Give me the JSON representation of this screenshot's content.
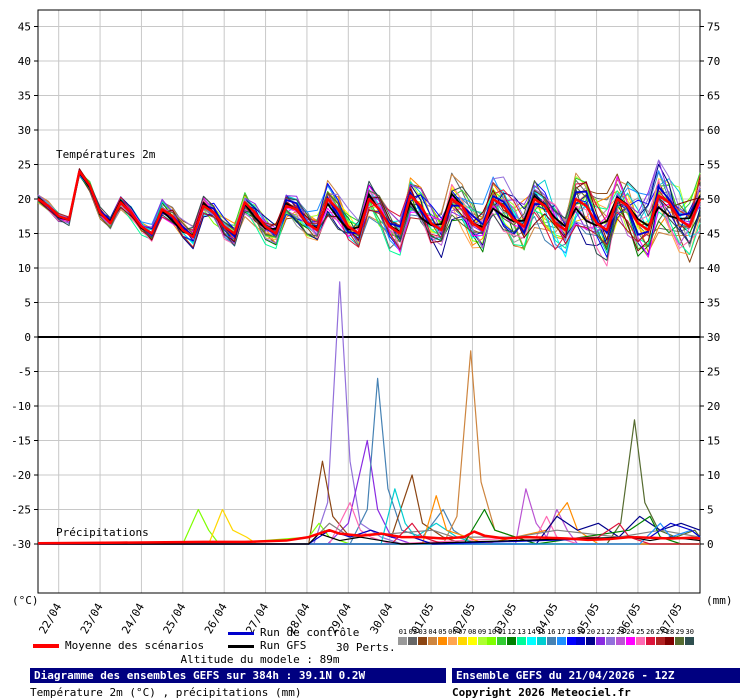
{
  "chart_data": {
    "type": "line",
    "title": "Diagramme des ensembles GEFS sur 384h : 39.1N 0.2W",
    "subtitle": "Température 2m (°C) , précipitations (mm)",
    "run_label": "Ensemble GEFS du 21/04/2026 - 12Z",
    "copyright": "Copyright 2026 Meteociel.fr",
    "altitude_note": "Altitude du modele : 89m",
    "sections": {
      "temperature_label": "Températures 2m",
      "precipitation_label": "Précipitations"
    },
    "x_dates": [
      "22/04",
      "23/04",
      "24/04",
      "25/04",
      "26/04",
      "27/04",
      "28/04",
      "29/04",
      "30/04",
      "01/05",
      "02/05",
      "03/05",
      "04/05",
      "05/05",
      "06/05",
      "07/05"
    ],
    "hours_total": 384,
    "first_day_offset_hours": 12,
    "left_axis": {
      "label": "(°C)",
      "range": [
        -30,
        45
      ],
      "ticks": [
        45,
        40,
        35,
        30,
        25,
        20,
        15,
        10,
        5,
        0,
        -5,
        -10,
        -15,
        -20,
        -25,
        -30
      ]
    },
    "right_axis": {
      "label": "(mm)",
      "range": [
        0,
        75
      ],
      "ticks": [
        75,
        70,
        65,
        60,
        55,
        50,
        45,
        40,
        35,
        30,
        25,
        20,
        15,
        10,
        5,
        0
      ]
    },
    "temperature": {
      "step_hours": 6,
      "mean": [
        20,
        19,
        17.5,
        17,
        24,
        22,
        18,
        16.5,
        19.5,
        18,
        16,
        15,
        18.5,
        17.5,
        15.5,
        14.5,
        19,
        18,
        16,
        15,
        19.5,
        18,
        16,
        15,
        19,
        18.5,
        16.5,
        15.5,
        20,
        18.5,
        16,
        15,
        20,
        18.5,
        16,
        15,
        20.5,
        19,
        16.5,
        15.5,
        20,
        19,
        16.5,
        15.5,
        20,
        19,
        17,
        16,
        20,
        19,
        16.5,
        15.5,
        20,
        19,
        16.5,
        15.5,
        20,
        19,
        16.5,
        15.5,
        20.5,
        19.5,
        17,
        16,
        20
      ],
      "ensemble": {
        "members": 30,
        "spread_start": 0.35,
        "spread_end": 3.2
      }
    },
    "precipitation": {
      "mean": [
        [
          0,
          0.1
        ],
        [
          48,
          0.2
        ],
        [
          96,
          0.3
        ],
        [
          120,
          0.3
        ],
        [
          144,
          0.5
        ],
        [
          157,
          1
        ],
        [
          169,
          2
        ],
        [
          175,
          1.5
        ],
        [
          187,
          1.2
        ],
        [
          199,
          1.5
        ],
        [
          211,
          1
        ],
        [
          223,
          1
        ],
        [
          235,
          0.8
        ],
        [
          247,
          1
        ],
        [
          253,
          1.8
        ],
        [
          259,
          1.2
        ],
        [
          271,
          0.8
        ],
        [
          283,
          1
        ],
        [
          295,
          0.9
        ],
        [
          307,
          0.8
        ],
        [
          319,
          0.6
        ],
        [
          331,
          0.7
        ],
        [
          343,
          1
        ],
        [
          355,
          0.9
        ],
        [
          367,
          0.8
        ],
        [
          379,
          0.9
        ],
        [
          384,
          0.8
        ]
      ],
      "members": [
        {
          "color": "#9370db",
          "points": [
            [
              0,
              0
            ],
            [
              150,
              0
            ],
            [
              160,
              0
            ],
            [
              168,
              6
            ],
            [
              175,
              38
            ],
            [
              181,
              12
            ],
            [
              187,
              3
            ],
            [
              199,
              1
            ],
            [
              211,
              0
            ],
            [
              384,
              0
            ]
          ]
        },
        {
          "color": "#8a2be2",
          "points": [
            [
              0,
              0
            ],
            [
              168,
              0
            ],
            [
              180,
              3
            ],
            [
              191,
              15
            ],
            [
              197,
              5
            ],
            [
              205,
              1
            ],
            [
              217,
              0
            ],
            [
              384,
              0
            ]
          ]
        },
        {
          "color": "#4682b4",
          "points": [
            [
              0,
              0
            ],
            [
              181,
              0
            ],
            [
              191,
              5
            ],
            [
              197,
              24
            ],
            [
              203,
              8
            ],
            [
              211,
              2
            ],
            [
              223,
              1
            ],
            [
              235,
              5
            ],
            [
              241,
              2
            ],
            [
              253,
              0
            ],
            [
              384,
              0
            ]
          ]
        },
        {
          "color": "#cd853f",
          "points": [
            [
              0,
              0
            ],
            [
              235,
              0
            ],
            [
              243,
              4
            ],
            [
              251,
              28
            ],
            [
              257,
              9
            ],
            [
              265,
              2
            ],
            [
              277,
              1
            ],
            [
              289,
              0
            ],
            [
              384,
              0
            ]
          ]
        },
        {
          "color": "#556b2f",
          "points": [
            [
              0,
              0
            ],
            [
              330,
              0
            ],
            [
              338,
              3
            ],
            [
              346,
              18
            ],
            [
              352,
              6
            ],
            [
              360,
              2
            ],
            [
              370,
              1
            ],
            [
              381,
              2
            ],
            [
              384,
              1
            ]
          ]
        },
        {
          "color": "#8b4513",
          "points": [
            [
              0,
              0
            ],
            [
              150,
              0
            ],
            [
              157,
              0
            ],
            [
              165,
              12
            ],
            [
              171,
              4
            ],
            [
              181,
              1
            ],
            [
              193,
              2
            ],
            [
              205,
              1
            ],
            [
              217,
              10
            ],
            [
              223,
              3
            ],
            [
              235,
              1
            ],
            [
              247,
              0
            ],
            [
              384,
              0
            ]
          ]
        },
        {
          "color": "#7fff00",
          "points": [
            [
              0,
              0
            ],
            [
              84,
              0
            ],
            [
              93,
              5
            ],
            [
              99,
              2
            ],
            [
              105,
              0
            ],
            [
              157,
              1
            ],
            [
              163,
              3
            ],
            [
              169,
              1
            ],
            [
              181,
              0
            ],
            [
              384,
              0
            ]
          ]
        },
        {
          "color": "#ffd700",
          "points": [
            [
              0,
              0
            ],
            [
              99,
              0
            ],
            [
              107,
              5
            ],
            [
              113,
              2
            ],
            [
              121,
              1
            ],
            [
              127,
              0
            ],
            [
              384,
              0
            ]
          ]
        },
        {
          "color": "#ba55d3",
          "points": [
            [
              0,
              0
            ],
            [
              277,
              0
            ],
            [
              283,
              8
            ],
            [
              289,
              3
            ],
            [
              295,
              1
            ],
            [
              301,
              5
            ],
            [
              307,
              2
            ],
            [
              313,
              0
            ],
            [
              384,
              0
            ]
          ]
        },
        {
          "color": "#ff69b4",
          "points": [
            [
              0,
              0
            ],
            [
              169,
              0
            ],
            [
              181,
              6
            ],
            [
              187,
              2
            ],
            [
              193,
              1
            ],
            [
              205,
              0
            ],
            [
              289,
              1
            ],
            [
              295,
              4
            ],
            [
              301,
              1
            ],
            [
              313,
              0
            ],
            [
              384,
              0
            ]
          ]
        },
        {
          "color": "#00ced1",
          "points": [
            [
              0,
              0
            ],
            [
              199,
              0
            ],
            [
              207,
              8
            ],
            [
              213,
              3
            ],
            [
              219,
              1
            ],
            [
              231,
              3
            ],
            [
              243,
              1
            ],
            [
              255,
              0
            ],
            [
              384,
              0
            ]
          ]
        },
        {
          "color": "#ff8c00",
          "points": [
            [
              0,
              0
            ],
            [
              223,
              0
            ],
            [
              231,
              7
            ],
            [
              237,
              2
            ],
            [
              249,
              1
            ],
            [
              259,
              0
            ],
            [
              295,
              2
            ],
            [
              307,
              6
            ],
            [
              313,
              2
            ],
            [
              325,
              0
            ],
            [
              384,
              0
            ]
          ]
        },
        {
          "color": "#00008b",
          "points": [
            [
              0,
              0
            ],
            [
              289,
              0
            ],
            [
              301,
              4
            ],
            [
              313,
              2
            ],
            [
              325,
              3
            ],
            [
              337,
              1
            ],
            [
              349,
              4
            ],
            [
              361,
              2
            ],
            [
              373,
              3
            ],
            [
              384,
              2
            ]
          ]
        },
        {
          "color": "#808080",
          "points": [
            [
              0,
              0
            ],
            [
              157,
              0
            ],
            [
              169,
              3
            ],
            [
              181,
              1
            ],
            [
              229,
              2
            ],
            [
              241,
              1
            ],
            [
              277,
              1
            ],
            [
              301,
              2
            ],
            [
              337,
              1
            ],
            [
              361,
              2
            ],
            [
              384,
              1
            ]
          ]
        },
        {
          "color": "#008000",
          "points": [
            [
              0,
              0
            ],
            [
              247,
              0
            ],
            [
              259,
              5
            ],
            [
              265,
              2
            ],
            [
              277,
              1
            ],
            [
              289,
              0
            ],
            [
              343,
              2
            ],
            [
              355,
              4
            ],
            [
              361,
              1
            ],
            [
              373,
              0
            ],
            [
              384,
              0
            ]
          ]
        },
        {
          "color": "#dc143c",
          "points": [
            [
              0,
              0
            ],
            [
              205,
              0
            ],
            [
              217,
              3
            ],
            [
              223,
              1
            ],
            [
              235,
              0
            ],
            [
              325,
              1
            ],
            [
              337,
              3
            ],
            [
              343,
              1
            ],
            [
              355,
              0
            ],
            [
              384,
              0
            ]
          ]
        },
        {
          "color": "#1e90ff",
          "points": [
            [
              0,
              0
            ],
            [
              349,
              0
            ],
            [
              361,
              3
            ],
            [
              367,
              1
            ],
            [
              379,
              2
            ],
            [
              384,
              1
            ]
          ]
        },
        {
          "color": "#0000cc",
          "points": [
            [
              0,
              0
            ],
            [
              157,
              0
            ],
            [
              169,
              2
            ],
            [
              181,
              1
            ],
            [
              193,
              2
            ],
            [
              205,
              1
            ],
            [
              217,
              1
            ],
            [
              229,
              0
            ],
            [
              355,
              1
            ],
            [
              367,
              3
            ],
            [
              379,
              2
            ],
            [
              384,
              1
            ]
          ]
        },
        {
          "color": "#000000",
          "points": [
            [
              0,
              0
            ],
            [
              157,
              0
            ],
            [
              163,
              1.5
            ],
            [
              175,
              0.5
            ],
            [
              187,
              1
            ],
            [
              199,
              0.5
            ],
            [
              211,
              0
            ],
            [
              343,
              1
            ],
            [
              355,
              0.5
            ],
            [
              367,
              1
            ],
            [
              384,
              0.5
            ]
          ]
        }
      ]
    },
    "legend": {
      "mean_label": "Moyenne des scénarios",
      "control_label": "Run de contrôle",
      "gfs_label": "Run GFS",
      "perts_label": "30 Perts.",
      "member_numbers": [
        "01",
        "02",
        "03",
        "04",
        "05",
        "06",
        "07",
        "08",
        "09",
        "10",
        "11",
        "12",
        "13",
        "14",
        "15",
        "16",
        "17",
        "18",
        "19",
        "20",
        "21",
        "22",
        "23",
        "24",
        "25",
        "26",
        "27",
        "28",
        "29",
        "30"
      ],
      "member_colors": [
        "#999999",
        "#666666",
        "#8b4513",
        "#cd853f",
        "#ff8c00",
        "#ffa54f",
        "#ffd700",
        "#ffff00",
        "#adff2f",
        "#7fff00",
        "#32cd32",
        "#008000",
        "#00fa9a",
        "#00ffff",
        "#00ced1",
        "#4682b4",
        "#1e90ff",
        "#0000ff",
        "#0000cd",
        "#00008b",
        "#8a2be2",
        "#9370db",
        "#ba55d3",
        "#ff00ff",
        "#ff69b4",
        "#dc143c",
        "#b22222",
        "#800000",
        "#556b2f",
        "#2f4f4f"
      ]
    },
    "colors": {
      "mean": "#ff0000",
      "control": "#0000cc",
      "gfs": "#000000",
      "header_bg": "#000080",
      "grid": "#c8c8c8"
    }
  }
}
